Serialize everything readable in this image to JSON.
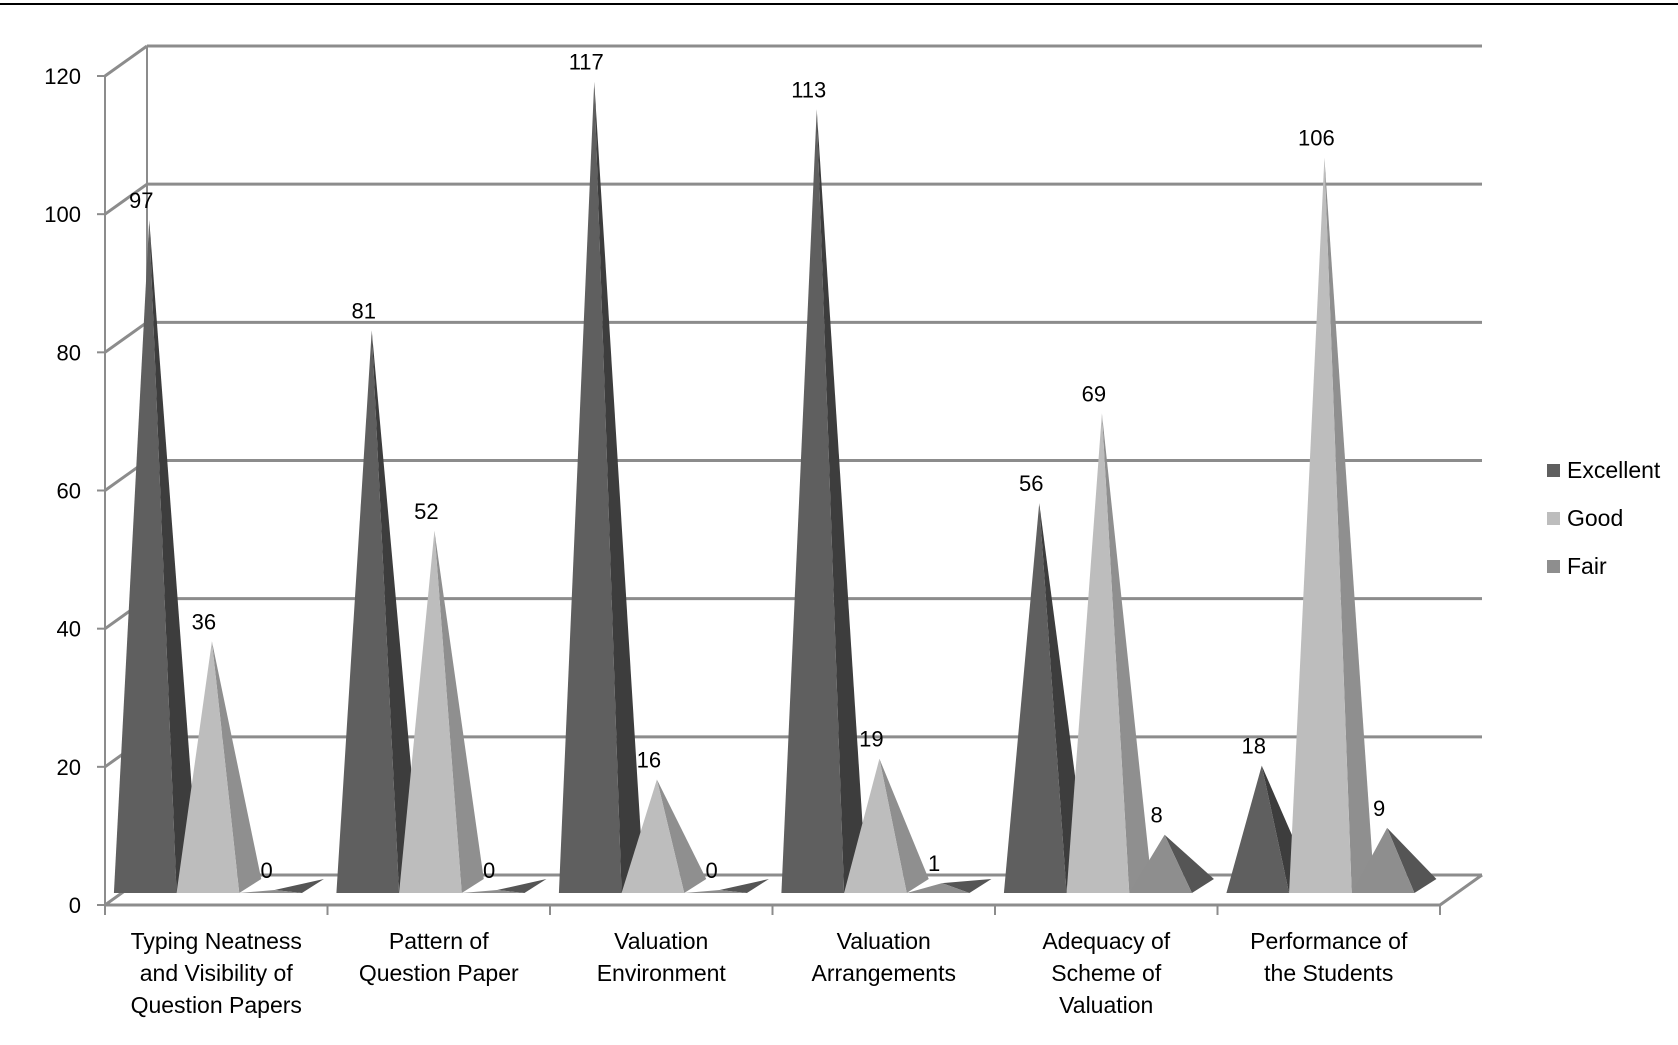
{
  "chart_data": {
    "type": "bar",
    "bar_shape": "3d-pyramid",
    "title": "",
    "xlabel": "",
    "ylabel": "",
    "categories": [
      [
        "Typing Neatness",
        "and Visibility of",
        "Question Papers"
      ],
      [
        "Pattern of",
        "Question Paper"
      ],
      [
        "Valuation",
        "Environment"
      ],
      [
        "Valuation",
        "Arrangements"
      ],
      [
        "Adequacy of",
        "Scheme of",
        "Valuation"
      ],
      [
        "Performance of",
        "the Students"
      ]
    ],
    "series": [
      {
        "name": "Excellent",
        "values": [
          97,
          81,
          117,
          113,
          56,
          18
        ],
        "color": "#5f5f5f",
        "shade": "#3d3d3d"
      },
      {
        "name": "Good",
        "values": [
          36,
          52,
          16,
          19,
          69,
          106
        ],
        "color": "#bdbdbd",
        "shade": "#8f8f8f"
      },
      {
        "name": "Fair",
        "values": [
          0,
          0,
          0,
          1,
          8,
          9
        ],
        "color": "#8e8e8e",
        "shade": "#555555"
      }
    ],
    "yticks": [
      0,
      20,
      40,
      60,
      80,
      100,
      120
    ],
    "ylim": [
      0,
      120
    ],
    "grid": true,
    "legend_position": "right",
    "data_labels": true
  }
}
